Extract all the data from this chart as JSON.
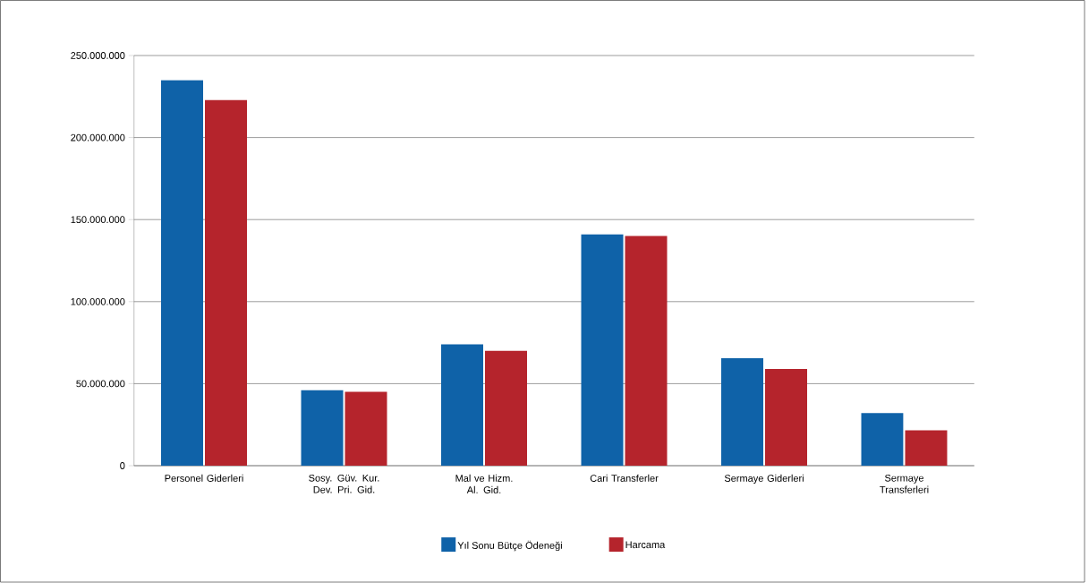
{
  "chart_data": {
    "type": "bar",
    "categories": [
      "Personel Giderleri",
      "Sosy. Güv. Kur. Dev. Pri. Gid.",
      "Mal ve Hizm. Al. Gid.",
      "Cari Transferler",
      "Sermaye Giderleri",
      "Sermaye Transferleri"
    ],
    "series": [
      {
        "name": "Yıl Sonu Bütçe Ödeneği",
        "color": "#0f62a8",
        "values": [
          235000000,
          46000000,
          74000000,
          141000000,
          65500000,
          32000000
        ]
      },
      {
        "name": "Harcama",
        "color": "#b5242c",
        "values": [
          223000000,
          45000000,
          70000000,
          140000000,
          59000000,
          21500000
        ]
      }
    ],
    "ylim": [
      0,
      250000000
    ],
    "yticks": [
      {
        "value": 0,
        "label": "0"
      },
      {
        "value": 50000000,
        "label": "50.000.000"
      },
      {
        "value": 100000000,
        "label": "100.000.000"
      },
      {
        "value": 150000000,
        "label": "150.000.000"
      },
      {
        "value": 200000000,
        "label": "200.000.000"
      },
      {
        "value": 250000000,
        "label": "250.000.000"
      }
    ],
    "grid": "y",
    "legend": "bottom"
  }
}
